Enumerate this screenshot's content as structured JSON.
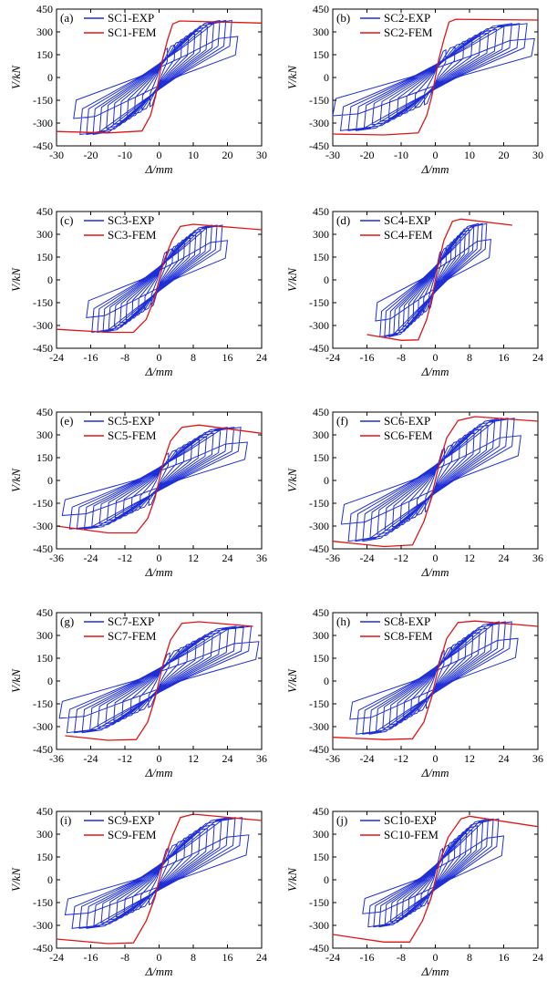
{
  "figure": {
    "colors": {
      "exp": "#1f2fd6",
      "fem": "#e01515",
      "axis": "#000000"
    }
  },
  "chart_data": [
    {
      "panel": "(a)",
      "type": "line",
      "xlabel": "Δ/mm",
      "ylabel": "V/kN",
      "xlim": [
        -30,
        30
      ],
      "ylim": [
        -450,
        450
      ],
      "xticks": [
        "-30",
        "-20",
        "-10",
        "0",
        "10",
        "20",
        "30"
      ],
      "yticks": [
        "450",
        "300",
        "150",
        "0",
        "-150",
        "-300",
        "-450"
      ],
      "xtick_values": [
        -30,
        -20,
        -10,
        0,
        10,
        20,
        30
      ],
      "ytick_values": [
        450,
        300,
        150,
        0,
        -150,
        -300,
        -450
      ],
      "series": [
        {
          "name": "SC1-EXP",
          "kind": "hysteresis",
          "xpos": 23,
          "ypos": 375,
          "xneg": -25,
          "yneg": -375
        },
        {
          "name": "SC1-FEM",
          "kind": "skeleton",
          "points": [
            [
              -30,
              -355
            ],
            [
              -15,
              -365
            ],
            [
              -5,
              -352
            ],
            [
              -2.5,
              -250
            ],
            [
              -1,
              -120
            ],
            [
              0,
              0
            ],
            [
              1,
              120
            ],
            [
              2.5,
              250
            ],
            [
              4,
              352
            ],
            [
              6,
              372
            ],
            [
              30,
              358
            ]
          ]
        }
      ]
    },
    {
      "panel": "(b)",
      "type": "line",
      "xlabel": "Δ/mm",
      "ylabel": "V/kN",
      "xlim": [
        -30,
        30
      ],
      "ylim": [
        -450,
        450
      ],
      "xticks": [
        "-30",
        "-20",
        "-10",
        "0",
        "10",
        "20",
        "30"
      ],
      "yticks": [
        "450",
        "300",
        "150",
        "0",
        "-150",
        "-300",
        "-450"
      ],
      "xtick_values": [
        -30,
        -20,
        -10,
        0,
        10,
        20,
        30
      ],
      "ytick_values": [
        450,
        300,
        150,
        0,
        -150,
        -300,
        -450
      ],
      "series": [
        {
          "name": "SC2-EXP",
          "kind": "hysteresis",
          "xpos": 29,
          "ypos": 355,
          "xneg": -30,
          "yneg": -350
        },
        {
          "name": "SC2-FEM",
          "kind": "skeleton",
          "points": [
            [
              -30,
              -372
            ],
            [
              -15,
              -378
            ],
            [
              -5,
              -365
            ],
            [
              -2.5,
              -250
            ],
            [
              -1,
              -120
            ],
            [
              0,
              0
            ],
            [
              1,
              120
            ],
            [
              2.5,
              250
            ],
            [
              4,
              365
            ],
            [
              6,
              383
            ],
            [
              30,
              378
            ]
          ]
        }
      ]
    },
    {
      "panel": "(c)",
      "type": "line",
      "xlabel": "Δ/mm",
      "ylabel": "V/kN",
      "xlim": [
        -24,
        24
      ],
      "ylim": [
        -450,
        450
      ],
      "xticks": [
        "-24",
        "-16",
        "-8",
        "0",
        "8",
        "16",
        "24"
      ],
      "yticks": [
        "450",
        "300",
        "150",
        "0",
        "-150",
        "-300",
        "-450"
      ],
      "xtick_values": [
        -24,
        -16,
        -8,
        0,
        8,
        16,
        24
      ],
      "ytick_values": [
        450,
        300,
        150,
        0,
        -150,
        -300,
        -450
      ],
      "series": [
        {
          "name": "SC3-EXP",
          "kind": "hysteresis",
          "xpos": 16,
          "ypos": 360,
          "xneg": -17,
          "yneg": -345
        },
        {
          "name": "SC3-FEM",
          "kind": "skeleton",
          "points": [
            [
              -24,
              -325
            ],
            [
              -12,
              -345
            ],
            [
              -6,
              -345
            ],
            [
              -3,
              -260
            ],
            [
              -1.2,
              -130
            ],
            [
              0,
              0
            ],
            [
              1.2,
              130
            ],
            [
              3,
              260
            ],
            [
              5,
              352
            ],
            [
              8,
              366
            ],
            [
              24,
              330
            ]
          ]
        }
      ]
    },
    {
      "panel": "(d)",
      "type": "line",
      "xlabel": "Δ/mm",
      "ylabel": "V/kN",
      "xlim": [
        -24,
        24
      ],
      "ylim": [
        -450,
        450
      ],
      "xticks": [
        "-24",
        "-16",
        "-8",
        "0",
        "8",
        "16",
        "24"
      ],
      "yticks": [
        "450",
        "300",
        "150",
        "0",
        "-150",
        "-300",
        "-450"
      ],
      "xtick_values": [
        -24,
        -16,
        -8,
        0,
        8,
        16,
        24
      ],
      "ytick_values": [
        450,
        300,
        150,
        0,
        -150,
        -300,
        -450
      ],
      "series": [
        {
          "name": "SC4-EXP",
          "kind": "hysteresis",
          "xpos": 13,
          "ypos": 370,
          "xneg": -14,
          "yneg": -375
        },
        {
          "name": "SC4-FEM",
          "kind": "skeleton",
          "points": [
            [
              -16,
              -360
            ],
            [
              -8,
              -398
            ],
            [
              -4,
              -395
            ],
            [
              -2,
              -260
            ],
            [
              -0.8,
              -120
            ],
            [
              0,
              0
            ],
            [
              0.8,
              120
            ],
            [
              2,
              260
            ],
            [
              4,
              385
            ],
            [
              6,
              400
            ],
            [
              18,
              360
            ]
          ]
        }
      ]
    },
    {
      "panel": "(e)",
      "type": "line",
      "xlabel": "Δ/mm",
      "ylabel": "V/kN",
      "xlim": [
        -36,
        36
      ],
      "ylim": [
        -450,
        450
      ],
      "xticks": [
        "-36",
        "-24",
        "-12",
        "0",
        "12",
        "24",
        "36"
      ],
      "yticks": [
        "450",
        "300",
        "150",
        "0",
        "-150",
        "-300",
        "-450"
      ],
      "xtick_values": [
        -36,
        -24,
        -12,
        0,
        12,
        24,
        36
      ],
      "ytick_values": [
        450,
        300,
        150,
        0,
        -150,
        -300,
        -450
      ],
      "series": [
        {
          "name": "SC5-EXP",
          "kind": "hysteresis",
          "xpos": 31,
          "ypos": 350,
          "xneg": -34,
          "yneg": -320
        },
        {
          "name": "SC5-FEM",
          "kind": "skeleton",
          "points": [
            [
              -36,
              -300
            ],
            [
              -18,
              -345
            ],
            [
              -8,
              -345
            ],
            [
              -4,
              -250
            ],
            [
              -1.5,
              -120
            ],
            [
              0,
              0
            ],
            [
              1.5,
              120
            ],
            [
              4,
              260
            ],
            [
              8,
              350
            ],
            [
              14,
              365
            ],
            [
              36,
              310
            ]
          ]
        }
      ]
    },
    {
      "panel": "(f)",
      "type": "line",
      "xlabel": "Δ/mm",
      "ylabel": "V/kN",
      "xlim": [
        -36,
        36
      ],
      "ylim": [
        -450,
        450
      ],
      "xticks": [
        "-36",
        "-24",
        "-12",
        "0",
        "12",
        "24",
        "36"
      ],
      "yticks": [
        "450",
        "300",
        "150",
        "0",
        "-150",
        "-300",
        "-450"
      ],
      "xtick_values": [
        -36,
        -24,
        -12,
        0,
        12,
        24,
        36
      ],
      "ytick_values": [
        450,
        300,
        150,
        0,
        -150,
        -300,
        -450
      ],
      "series": [
        {
          "name": "SC6-EXP",
          "kind": "hysteresis",
          "xpos": 30,
          "ypos": 410,
          "xneg": -33,
          "yneg": -400
        },
        {
          "name": "SC6-FEM",
          "kind": "skeleton",
          "points": [
            [
              -36,
              -400
            ],
            [
              -18,
              -435
            ],
            [
              -8,
              -425
            ],
            [
              -4,
              -270
            ],
            [
              -1.5,
              -120
            ],
            [
              0,
              0
            ],
            [
              1.5,
              120
            ],
            [
              4,
              280
            ],
            [
              8,
              395
            ],
            [
              14,
              420
            ],
            [
              36,
              390
            ]
          ]
        }
      ]
    },
    {
      "panel": "(g)",
      "type": "line",
      "xlabel": "Δ/mm",
      "ylabel": "V/kN",
      "xlim": [
        -36,
        36
      ],
      "ylim": [
        -450,
        450
      ],
      "xticks": [
        "-36",
        "-24",
        "-12",
        "0",
        "12",
        "24",
        "36"
      ],
      "yticks": [
        "450",
        "300",
        "150",
        "0",
        "-150",
        "-300",
        "-450"
      ],
      "xtick_values": [
        -36,
        -24,
        -12,
        0,
        12,
        24,
        36
      ],
      "ytick_values": [
        450,
        300,
        150,
        0,
        -150,
        -300,
        -450
      ],
      "series": [
        {
          "name": "SC7-EXP",
          "kind": "hysteresis",
          "xpos": 35,
          "ypos": 360,
          "xneg": -35,
          "yneg": -340
        },
        {
          "name": "SC7-FEM",
          "kind": "skeleton",
          "points": [
            [
              -33,
              -360
            ],
            [
              -18,
              -390
            ],
            [
              -8,
              -385
            ],
            [
              -4,
              -270
            ],
            [
              -1.5,
              -120
            ],
            [
              0,
              0
            ],
            [
              1.5,
              120
            ],
            [
              4,
              270
            ],
            [
              8,
              380
            ],
            [
              14,
              390
            ],
            [
              33,
              360
            ]
          ]
        }
      ]
    },
    {
      "panel": "(h)",
      "type": "line",
      "xlabel": "Δ/mm",
      "ylabel": "V/kN",
      "xlim": [
        -36,
        36
      ],
      "ylim": [
        -450,
        450
      ],
      "xticks": [
        "-36",
        "-24",
        "-12",
        "0",
        "12",
        "24",
        "36"
      ],
      "yticks": [
        "450",
        "300",
        "150",
        "0",
        "-150",
        "-300",
        "-450"
      ],
      "xtick_values": [
        -36,
        -24,
        -12,
        0,
        12,
        24,
        36
      ],
      "ytick_values": [
        450,
        300,
        150,
        0,
        -150,
        -300,
        -450
      ],
      "series": [
        {
          "name": "SC8-EXP",
          "kind": "hysteresis",
          "xpos": 29,
          "ypos": 390,
          "xneg": -30,
          "yneg": -350
        },
        {
          "name": "SC8-FEM",
          "kind": "skeleton",
          "points": [
            [
              -36,
              -370
            ],
            [
              -18,
              -385
            ],
            [
              -8,
              -380
            ],
            [
              -4,
              -270
            ],
            [
              -1.5,
              -120
            ],
            [
              0,
              0
            ],
            [
              1.5,
              120
            ],
            [
              4,
              280
            ],
            [
              8,
              385
            ],
            [
              14,
              395
            ],
            [
              36,
              360
            ]
          ]
        }
      ]
    },
    {
      "panel": "(i)",
      "type": "line",
      "xlabel": "Δ/mm",
      "ylabel": "V/kN",
      "xlim": [
        -24,
        24
      ],
      "ylim": [
        -450,
        450
      ],
      "xticks": [
        "-24",
        "-16",
        "-8",
        "0",
        "8",
        "16",
        "24"
      ],
      "yticks": [
        "450",
        "300",
        "150",
        "0",
        "-150",
        "-300",
        "-450"
      ],
      "xtick_values": [
        -24,
        -16,
        -8,
        0,
        8,
        16,
        24
      ],
      "ytick_values": [
        450,
        300,
        150,
        0,
        -150,
        -300,
        -450
      ],
      "series": [
        {
          "name": "SC9-EXP",
          "kind": "hysteresis",
          "xpos": 21,
          "ypos": 410,
          "xneg": -22,
          "yneg": -320
        },
        {
          "name": "SC9-FEM",
          "kind": "skeleton",
          "points": [
            [
              -24,
              -390
            ],
            [
              -12,
              -420
            ],
            [
              -6,
              -415
            ],
            [
              -3,
              -270
            ],
            [
              -1,
              -120
            ],
            [
              0,
              0
            ],
            [
              1,
              120
            ],
            [
              3,
              280
            ],
            [
              5,
              410
            ],
            [
              8,
              432
            ],
            [
              24,
              390
            ]
          ]
        }
      ]
    },
    {
      "panel": "(j)",
      "type": "line",
      "xlabel": "Δ/mm",
      "ylabel": "V/kN",
      "xlim": [
        -24,
        24
      ],
      "ylim": [
        -450,
        450
      ],
      "xticks": [
        "-24",
        "-16",
        "-8",
        "0",
        "8",
        "16",
        "24"
      ],
      "yticks": [
        "450",
        "300",
        "150",
        "0",
        "-150",
        "-300",
        "-450"
      ],
      "xtick_values": [
        -24,
        -16,
        -8,
        0,
        8,
        16,
        24
      ],
      "ytick_values": [
        450,
        300,
        150,
        0,
        -150,
        -300,
        -450
      ],
      "series": [
        {
          "name": "SC10-EXP",
          "kind": "hysteresis",
          "xpos": 16,
          "ypos": 400,
          "xneg": -17,
          "yneg": -310
        },
        {
          "name": "SC10-FEM",
          "kind": "skeleton",
          "points": [
            [
              -24,
              -360
            ],
            [
              -12,
              -410
            ],
            [
              -6,
              -410
            ],
            [
              -3,
              -270
            ],
            [
              -1,
              -120
            ],
            [
              0,
              0
            ],
            [
              1,
              120
            ],
            [
              3,
              280
            ],
            [
              6,
              400
            ],
            [
              8,
              418
            ],
            [
              24,
              350
            ]
          ]
        }
      ]
    }
  ]
}
